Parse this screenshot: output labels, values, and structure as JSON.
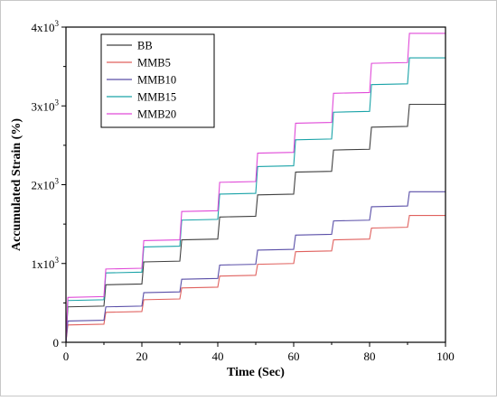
{
  "chart_data": {
    "type": "line",
    "title": "",
    "xlabel": "Time (Sec)",
    "ylabel": "Accumulated Strain (%)",
    "xlim": [
      0,
      100
    ],
    "ylim": [
      0,
      4000
    ],
    "x_ticks": [
      0,
      20,
      40,
      60,
      80,
      100
    ],
    "y_ticks": [
      {
        "value": 0,
        "base": "0",
        "exp": ""
      },
      {
        "value": 1000,
        "base": "1x10",
        "exp": "3"
      },
      {
        "value": 2000,
        "base": "2x10",
        "exp": "3"
      },
      {
        "value": 3000,
        "base": "3x10",
        "exp": "3"
      },
      {
        "value": 4000,
        "base": "4x10",
        "exp": "3"
      }
    ],
    "grid": false,
    "legend_position": "top-left",
    "series": [
      {
        "name": "BB",
        "color": "#404040",
        "x": [
          0,
          0.5,
          10,
          10.5,
          20,
          20.5,
          30,
          30.5,
          40,
          40.5,
          50,
          50.5,
          60,
          60.5,
          70,
          70.5,
          80,
          80.5,
          90,
          90.5,
          100
        ],
        "y": [
          0,
          450,
          460,
          730,
          740,
          1020,
          1030,
          1300,
          1310,
          1590,
          1600,
          1870,
          1880,
          2160,
          2170,
          2440,
          2450,
          2730,
          2740,
          3020,
          3020
        ]
      },
      {
        "name": "MMB5",
        "color": "#e0615e",
        "x": [
          0,
          0.5,
          10,
          10.5,
          20,
          20.5,
          30,
          30.5,
          40,
          40.5,
          50,
          50.5,
          60,
          60.5,
          70,
          70.5,
          80,
          80.5,
          90,
          90.5,
          100
        ],
        "y": [
          0,
          220,
          230,
          380,
          390,
          540,
          550,
          690,
          700,
          840,
          850,
          990,
          1000,
          1150,
          1160,
          1300,
          1310,
          1450,
          1460,
          1610,
          1610
        ]
      },
      {
        "name": "MMB10",
        "color": "#5a4fa8",
        "x": [
          0,
          0.5,
          10,
          10.5,
          20,
          20.5,
          30,
          30.5,
          40,
          40.5,
          50,
          50.5,
          60,
          60.5,
          70,
          70.5,
          80,
          80.5,
          90,
          90.5,
          100
        ],
        "y": [
          0,
          270,
          280,
          450,
          460,
          630,
          640,
          800,
          810,
          980,
          990,
          1170,
          1180,
          1360,
          1370,
          1540,
          1550,
          1720,
          1730,
          1910,
          1910
        ]
      },
      {
        "name": "MMB15",
        "color": "#1aa3a8",
        "x": [
          0,
          0.5,
          10,
          10.5,
          20,
          20.5,
          30,
          30.5,
          40,
          40.5,
          50,
          50.5,
          60,
          60.5,
          70,
          70.5,
          80,
          80.5,
          90,
          90.5,
          100
        ],
        "y": [
          0,
          530,
          540,
          880,
          890,
          1210,
          1220,
          1550,
          1560,
          1880,
          1890,
          2230,
          2240,
          2570,
          2580,
          2920,
          2930,
          3270,
          3280,
          3610,
          3610
        ]
      },
      {
        "name": "MMB20",
        "color": "#e04ad8",
        "x": [
          0,
          0.5,
          10,
          10.5,
          20,
          20.5,
          30,
          30.5,
          40,
          40.5,
          50,
          50.5,
          60,
          60.5,
          70,
          70.5,
          80,
          80.5,
          90,
          90.5,
          100
        ],
        "y": [
          0,
          570,
          580,
          930,
          940,
          1290,
          1300,
          1660,
          1670,
          2030,
          2040,
          2400,
          2410,
          2780,
          2790,
          3160,
          3170,
          3540,
          3550,
          3920,
          3920
        ]
      }
    ]
  }
}
